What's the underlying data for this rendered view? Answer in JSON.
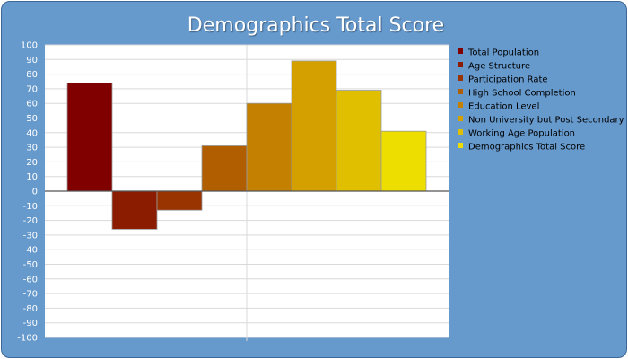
{
  "chart_data": {
    "type": "bar",
    "title": "Demographics Total Score",
    "ylim": [
      -100,
      100
    ],
    "ytick_step": 10,
    "grid": true,
    "legend_position": "right",
    "series": [
      {
        "name": "Total Population",
        "value": 74,
        "color": "#800000"
      },
      {
        "name": "Age Structure",
        "value": -26,
        "color": "#8b1c00"
      },
      {
        "name": "Participation Rate",
        "value": -13,
        "color": "#993300"
      },
      {
        "name": "High School Completion",
        "value": 31,
        "color": "#b05e00"
      },
      {
        "name": "Education Level",
        "value": 60,
        "color": "#c48000"
      },
      {
        "name": "Non University but Post Secondary",
        "value": 89,
        "color": "#d4a000"
      },
      {
        "name": "Working Age Population",
        "value": 69,
        "color": "#e0bf00"
      },
      {
        "name": "Demographics Total Score",
        "value": 41,
        "color": "#eede00"
      }
    ]
  }
}
